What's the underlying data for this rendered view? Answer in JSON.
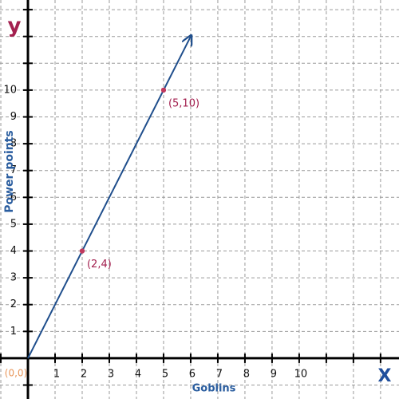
{
  "chart_data": {
    "type": "line",
    "x_label": "Goblins",
    "y_label": "Power points",
    "x_axis_letter": "X",
    "y_axis_letter": "y",
    "origin_label": "(0,0)",
    "xlim": [
      -1.03,
      13.68
    ],
    "ylim": [
      -1.52,
      13.36
    ],
    "xticks": [
      1,
      2,
      3,
      4,
      5,
      6,
      7,
      8,
      9,
      10
    ],
    "yticks": [
      1,
      2,
      3,
      4,
      5,
      6,
      7,
      8,
      9,
      10
    ],
    "grid": {
      "x": [
        -1,
        0,
        1,
        2,
        3,
        4,
        5,
        6,
        7,
        8,
        9,
        10,
        11,
        12,
        13
      ],
      "y": [
        -1,
        0,
        1,
        2,
        3,
        4,
        5,
        6,
        7,
        8,
        9,
        10,
        11,
        12,
        13
      ]
    },
    "line": {
      "x": [
        0,
        6
      ],
      "y": [
        0,
        12
      ],
      "color": "#1f4e8c"
    },
    "points": {
      "x": [
        2,
        5
      ],
      "y": [
        4,
        10
      ],
      "labels": [
        "(2,4)",
        "(5,10)"
      ],
      "color": "#c0395e"
    }
  }
}
